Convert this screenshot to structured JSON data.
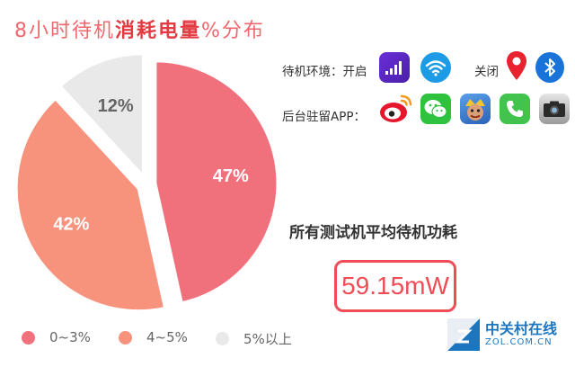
{
  "header": {
    "title_prefix": "8小时待机",
    "title_highlight": "消耗电量",
    "title_suffix": "%分布"
  },
  "settings": {
    "standby_label": "待机环境：开启",
    "off_label": "关闭",
    "bg_apps_label": "后台驻留APP：",
    "on_icons": [
      "signal-icon",
      "wifi-icon"
    ],
    "off_icons": [
      "location-pin-icon",
      "bluetooth-icon"
    ],
    "apps": [
      "weibo-icon",
      "wechat-icon",
      "clash-royale-icon",
      "phone-icon",
      "camera-icon"
    ]
  },
  "power": {
    "caption": "所有测试机平均待机功耗",
    "value": "59.15mW"
  },
  "watermark": {
    "cn": "中关村在线",
    "en": "ZOL.COM.CN"
  },
  "chart_data": {
    "type": "pie",
    "categories": [
      "0~3%",
      "4~5%",
      "5%以上"
    ],
    "values": [
      47,
      42,
      12
    ],
    "data_labels": [
      "47%",
      "42%",
      "12%"
    ],
    "colors": [
      "#f0707c",
      "#f7937d",
      "#e9e9e9"
    ],
    "legend_position": "bottom"
  }
}
